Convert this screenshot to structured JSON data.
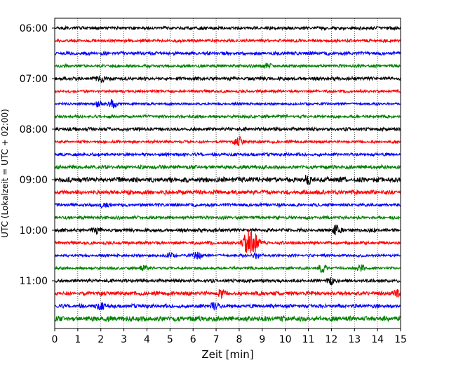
{
  "chart_data": {
    "type": "line",
    "title": "",
    "xlabel": "Zeit  [min]",
    "ylabel": "UTC (Lokalzeit = UTC + 02:00)",
    "xlim": [
      0,
      15
    ],
    "x_ticks": [
      "0",
      "1",
      "2",
      "3",
      "4",
      "5",
      "6",
      "7",
      "8",
      "9",
      "10",
      "11",
      "12",
      "13",
      "14",
      "15"
    ],
    "y_tick_labels": [
      "06:00",
      "07:00",
      "08:00",
      "09:00",
      "10:00",
      "11:00"
    ],
    "y_tick_rows": [
      0,
      4,
      8,
      12,
      16,
      20
    ],
    "grid": "vertical dotted",
    "row_colors": [
      "#000000",
      "#ff0000",
      "#0000ff",
      "#008000"
    ],
    "rows": [
      {
        "time": "06:00",
        "color": "#000000",
        "amplitude": 2.5,
        "events": []
      },
      {
        "time": "06:15",
        "color": "#ff0000",
        "amplitude": 2.2,
        "events": []
      },
      {
        "time": "06:30",
        "color": "#0000ff",
        "amplitude": 2.5,
        "events": []
      },
      {
        "time": "06:45",
        "color": "#008000",
        "amplitude": 2.3,
        "events": [
          {
            "x": 9.2,
            "amp": 3
          }
        ]
      },
      {
        "time": "07:00",
        "color": "#000000",
        "amplitude": 2.6,
        "events": [
          {
            "x": 2.0,
            "amp": 5
          }
        ]
      },
      {
        "time": "07:15",
        "color": "#ff0000",
        "amplitude": 2.0,
        "events": []
      },
      {
        "time": "07:30",
        "color": "#0000ff",
        "amplitude": 1.8,
        "events": [
          {
            "x": 1.9,
            "amp": 4
          },
          {
            "x": 2.5,
            "amp": 6
          }
        ]
      },
      {
        "time": "07:45",
        "color": "#008000",
        "amplitude": 2.2,
        "events": []
      },
      {
        "time": "08:00",
        "color": "#000000",
        "amplitude": 2.6,
        "events": []
      },
      {
        "time": "08:15",
        "color": "#ff0000",
        "amplitude": 2.0,
        "events": [
          {
            "x": 8.0,
            "amp": 6
          }
        ]
      },
      {
        "time": "08:30",
        "color": "#0000ff",
        "amplitude": 2.3,
        "events": []
      },
      {
        "time": "08:45",
        "color": "#008000",
        "amplitude": 2.8,
        "events": []
      },
      {
        "time": "09:00",
        "color": "#000000",
        "amplitude": 3.8,
        "events": [
          {
            "x": 11.0,
            "amp": 5
          }
        ]
      },
      {
        "time": "09:15",
        "color": "#ff0000",
        "amplitude": 3.2,
        "events": []
      },
      {
        "time": "09:30",
        "color": "#0000ff",
        "amplitude": 2.4,
        "events": [
          {
            "x": 2.1,
            "amp": 3
          }
        ]
      },
      {
        "time": "09:45",
        "color": "#008000",
        "amplitude": 2.4,
        "events": []
      },
      {
        "time": "10:00",
        "color": "#000000",
        "amplitude": 2.6,
        "events": [
          {
            "x": 1.8,
            "amp": 4
          },
          {
            "x": 12.2,
            "amp": 6
          }
        ]
      },
      {
        "time": "10:15",
        "color": "#ff0000",
        "amplitude": 2.3,
        "events": [
          {
            "x": 8.3,
            "amp": 9
          },
          {
            "x": 8.5,
            "amp": 16
          },
          {
            "x": 8.7,
            "amp": 9
          }
        ]
      },
      {
        "time": "10:30",
        "color": "#0000ff",
        "amplitude": 2.0,
        "events": [
          {
            "x": 5.0,
            "amp": 3
          },
          {
            "x": 6.2,
            "amp": 5
          },
          {
            "x": 8.8,
            "amp": 4
          }
        ]
      },
      {
        "time": "10:45",
        "color": "#008000",
        "amplitude": 2.0,
        "events": [
          {
            "x": 3.8,
            "amp": 3
          },
          {
            "x": 11.6,
            "amp": 5
          },
          {
            "x": 13.3,
            "amp": 4
          }
        ]
      },
      {
        "time": "11:00",
        "color": "#000000",
        "amplitude": 2.5,
        "events": [
          {
            "x": 12.0,
            "amp": 4
          }
        ]
      },
      {
        "time": "11:15",
        "color": "#ff0000",
        "amplitude": 3.0,
        "events": [
          {
            "x": 7.2,
            "amp": 4
          },
          {
            "x": 14.8,
            "amp": 4
          }
        ]
      },
      {
        "time": "11:30",
        "color": "#0000ff",
        "amplitude": 2.8,
        "events": [
          {
            "x": 2.0,
            "amp": 4
          },
          {
            "x": 6.9,
            "amp": 4
          }
        ]
      },
      {
        "time": "11:45",
        "color": "#008000",
        "amplitude": 3.8,
        "events": []
      }
    ]
  }
}
